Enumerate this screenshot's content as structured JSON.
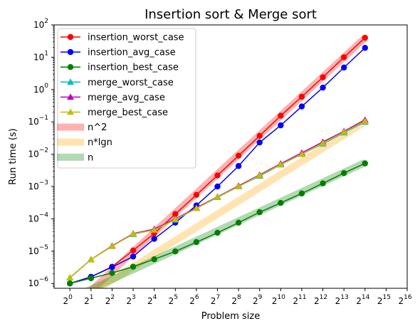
{
  "chart_data": {
    "type": "line",
    "title": "Insertion sort & Merge sort",
    "xlabel": "Problem size",
    "ylabel": "Run time (s)",
    "x_scale": "log2",
    "y_scale": "log10",
    "x": [
      0,
      1,
      2,
      3,
      4,
      5,
      6,
      7,
      8,
      9,
      10,
      11,
      12,
      13,
      14
    ],
    "xlim_exp": [
      -0.75,
      16
    ],
    "xticks": [
      {
        "base": "2",
        "exp": "0"
      },
      {
        "base": "2",
        "exp": "1"
      },
      {
        "base": "2",
        "exp": "2"
      },
      {
        "base": "2",
        "exp": "3"
      },
      {
        "base": "2",
        "exp": "4"
      },
      {
        "base": "2",
        "exp": "5"
      },
      {
        "base": "2",
        "exp": "6"
      },
      {
        "base": "2",
        "exp": "7"
      },
      {
        "base": "2",
        "exp": "8"
      },
      {
        "base": "2",
        "exp": "9"
      },
      {
        "base": "2",
        "exp": "10"
      },
      {
        "base": "2",
        "exp": "11"
      },
      {
        "base": "2",
        "exp": "12"
      },
      {
        "base": "2",
        "exp": "13"
      },
      {
        "base": "2",
        "exp": "14"
      },
      {
        "base": "2",
        "exp": "15"
      },
      {
        "base": "2",
        "exp": "16"
      }
    ],
    "ylim_exp": [
      -6.15,
      2
    ],
    "yticks": [
      {
        "base": "10",
        "exp": "−6",
        "e": -6
      },
      {
        "base": "10",
        "exp": "−5",
        "e": -5
      },
      {
        "base": "10",
        "exp": "−4",
        "e": -4
      },
      {
        "base": "10",
        "exp": "−3",
        "e": -3
      },
      {
        "base": "10",
        "exp": "−2",
        "e": -2
      },
      {
        "base": "10",
        "exp": "−1",
        "e": -1
      },
      {
        "base": "10",
        "exp": "0",
        "e": 0
      },
      {
        "base": "10",
        "exp": "1",
        "e": 1
      },
      {
        "base": "10",
        "exp": "2",
        "e": 2
      }
    ],
    "legend_position": "top-left",
    "series": [
      {
        "name": "insertion_worst_case",
        "color": "#ff0000",
        "marker": "circle",
        "values": [
          1e-06,
          1.6e-06,
          3.3e-06,
          1.05e-05,
          3.5e-05,
          0.00014,
          0.00055,
          0.0022,
          0.009,
          0.037,
          0.155,
          0.6,
          2.4,
          10,
          40
        ]
      },
      {
        "name": "insertion_avg_case",
        "color": "#0000ff",
        "marker": "circle",
        "values": [
          1e-06,
          1.6e-06,
          3.2e-06,
          6.8e-06,
          2.4e-05,
          7.6e-05,
          0.00026,
          0.001,
          0.0043,
          0.023,
          0.078,
          0.3,
          1.15,
          4.8,
          19.5
        ]
      },
      {
        "name": "insertion_best_case",
        "color": "#008000",
        "marker": "circle",
        "values": [
          1e-06,
          1.45e-06,
          2.1e-06,
          3.3e-06,
          5.6e-06,
          9.8e-06,
          1.9e-05,
          3.7e-05,
          7.6e-05,
          0.00016,
          0.00031,
          0.00061,
          0.00125,
          0.0026,
          0.0052
        ]
      },
      {
        "name": "merge_worst_case",
        "color": "#00bfbf",
        "marker": "triangle",
        "values": [
          1.5e-06,
          5.5e-06,
          1.45e-05,
          3.3e-05,
          4.7e-05,
          9.3e-05,
          0.00021,
          0.00046,
          0.001,
          0.0021,
          0.0047,
          0.01,
          0.021,
          0.046,
          0.1
        ]
      },
      {
        "name": "merge_avg_case",
        "color": "#bf00bf",
        "marker": "triangle",
        "values": [
          1.5e-06,
          5.5e-06,
          1.45e-05,
          3.5e-05,
          4.8e-05,
          0.0001,
          0.00022,
          0.00048,
          0.00105,
          0.0023,
          0.0051,
          0.011,
          0.024,
          0.051,
          0.115
        ]
      },
      {
        "name": "merge_best_case",
        "color": "#bfbf00",
        "marker": "triangle",
        "values": [
          1.5e-06,
          5.5e-06,
          1.4e-05,
          3.4e-05,
          4.5e-05,
          9.5e-05,
          0.00021,
          0.00047,
          0.001,
          0.0022,
          0.0048,
          0.01,
          0.022,
          0.048,
          0.105
        ]
      }
    ],
    "reference_bands": [
      {
        "name": "n^2",
        "color": "#ff0000",
        "opacity": 0.3,
        "x": [
          0,
          14
        ],
        "values": [
          1.5e-07,
          40
        ]
      },
      {
        "name": "n*lgn",
        "color": "#ffa500",
        "opacity": 0.3,
        "x": [
          1,
          14
        ],
        "values": [
          5e-07,
          0.1
        ]
      },
      {
        "name": "n",
        "color": "#008000",
        "opacity": 0.3,
        "x": [
          0,
          14
        ],
        "values": [
          3.3e-07,
          0.0055
        ]
      }
    ]
  }
}
